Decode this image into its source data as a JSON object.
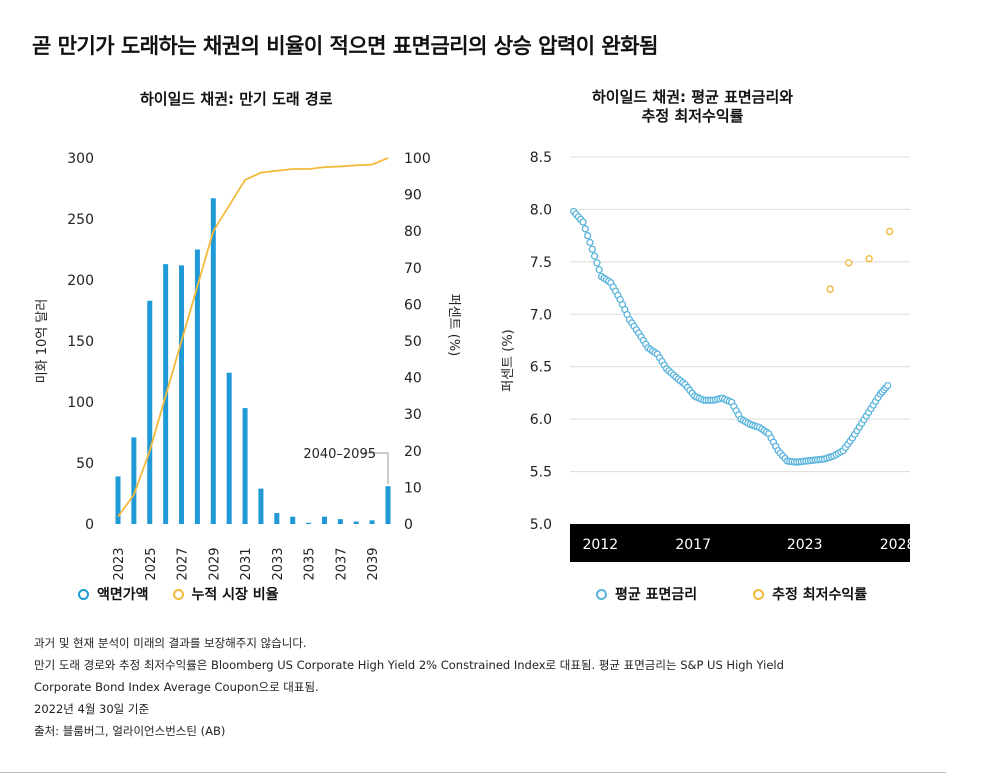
{
  "title": "곧 만기가 도래하는 채권의 비율이 적으면 표면금리의 상승 압력이 완화됨",
  "notes": [
    "과거 및 현재 분석이 미래의 결과를 보장해주지 않습니다.",
    "만기 도래 경로와 추정 최저수익률은 Bloomberg US Corporate High Yield 2% Constrained Index로 대표됨. 평균 표면금리는 S&P US High Yield",
    "Corporate Bond Index Average Coupon으로 대표됨.",
    "2022년 4월 30일 기준",
    "출처: 블룸버그, 얼라이언스번스틴 (AB)"
  ],
  "colors": {
    "bar": "#1f9ad6",
    "line": "#f2b93b",
    "coupon": "#5ab4dc",
    "ytw": "#f2b93b",
    "band": "#000000"
  },
  "chart_data": [
    {
      "type": "bar",
      "title": "하이일드 채권: 만기 도래 경로",
      "ylabel": "미화 10억 달러",
      "y2label": "퍼센트 (%)",
      "ylim": [
        0,
        300
      ],
      "y2lim": [
        0,
        100
      ],
      "yticks": [
        "0",
        "50",
        "100",
        "150",
        "200",
        "250",
        "300"
      ],
      "y2ticks": [
        "0",
        "10",
        "20",
        "30",
        "40",
        "50",
        "60",
        "70",
        "80",
        "90",
        "100"
      ],
      "xticks": [
        "2023",
        "2025",
        "2027",
        "2029",
        "2031",
        "2033",
        "2035",
        "2037",
        "2039"
      ],
      "categories": [
        "2023",
        "2024",
        "2025",
        "2026",
        "2027",
        "2028",
        "2029",
        "2030",
        "2031",
        "2032",
        "2033",
        "2034",
        "2035",
        "2036",
        "2037",
        "2038",
        "2039",
        "2040–2095"
      ],
      "annotation": "2040–2095",
      "series": [
        {
          "name": "액면가액",
          "axis": "left",
          "values": [
            39,
            71,
            183,
            213,
            212,
            225,
            267,
            124,
            95,
            29,
            9,
            6,
            1,
            6,
            4,
            2,
            3,
            31
          ]
        },
        {
          "name": "누적 시장 비율",
          "axis": "right",
          "values": [
            2,
            8,
            20,
            35,
            50,
            65,
            80,
            87,
            94,
            96,
            96.5,
            97,
            97,
            97.5,
            97.7,
            98,
            98.2,
            100
          ]
        }
      ],
      "grid": false,
      "legend": "bottom-left"
    },
    {
      "type": "scatter",
      "title": [
        "하이일드 채권: 평균 표면금리와",
        "추정 최저수익률"
      ],
      "ylabel": "퍼센트 (%)",
      "ylim": [
        5.0,
        8.5
      ],
      "yticks": [
        "5.0",
        "5.5",
        "6.0",
        "6.5",
        "7.0",
        "7.5",
        "8.0",
        "8.5"
      ],
      "xticks": [
        "2012",
        "2017",
        "2023",
        "2028"
      ],
      "xlim": [
        2010.8,
        2029.1
      ],
      "grid": true,
      "legend": "bottom",
      "series": [
        {
          "name": "평균 표면금리",
          "x": [
            2011.0,
            2011.5,
            2012.0,
            2012.5,
            2013.0,
            2013.5,
            2014.0,
            2014.5,
            2015.0,
            2015.5,
            2016.0,
            2016.5,
            2017.0,
            2017.5,
            2018.0,
            2018.5,
            2019.0,
            2019.5,
            2020.0,
            2020.5,
            2021.0,
            2021.5,
            2022.0,
            2022.5,
            2023.0,
            2023.5,
            2024.0,
            2024.5,
            2025.0,
            2025.5,
            2026.0,
            2026.5,
            2027.0,
            2027.5,
            2027.9
          ],
          "y": [
            7.98,
            7.88,
            7.62,
            7.36,
            7.3,
            7.14,
            6.95,
            6.82,
            6.68,
            6.62,
            6.48,
            6.4,
            6.33,
            6.22,
            6.18,
            6.18,
            6.2,
            6.16,
            6.0,
            5.95,
            5.92,
            5.86,
            5.7,
            5.6,
            5.59,
            5.6,
            5.61,
            5.62,
            5.65,
            5.7,
            5.82,
            5.96,
            6.1,
            6.24,
            6.32
          ]
        },
        {
          "name": "추정 최저수익률",
          "x": [
            2024.8,
            2025.8,
            2026.9,
            2028.0
          ],
          "y": [
            7.24,
            7.49,
            7.53,
            7.79
          ]
        }
      ]
    }
  ]
}
